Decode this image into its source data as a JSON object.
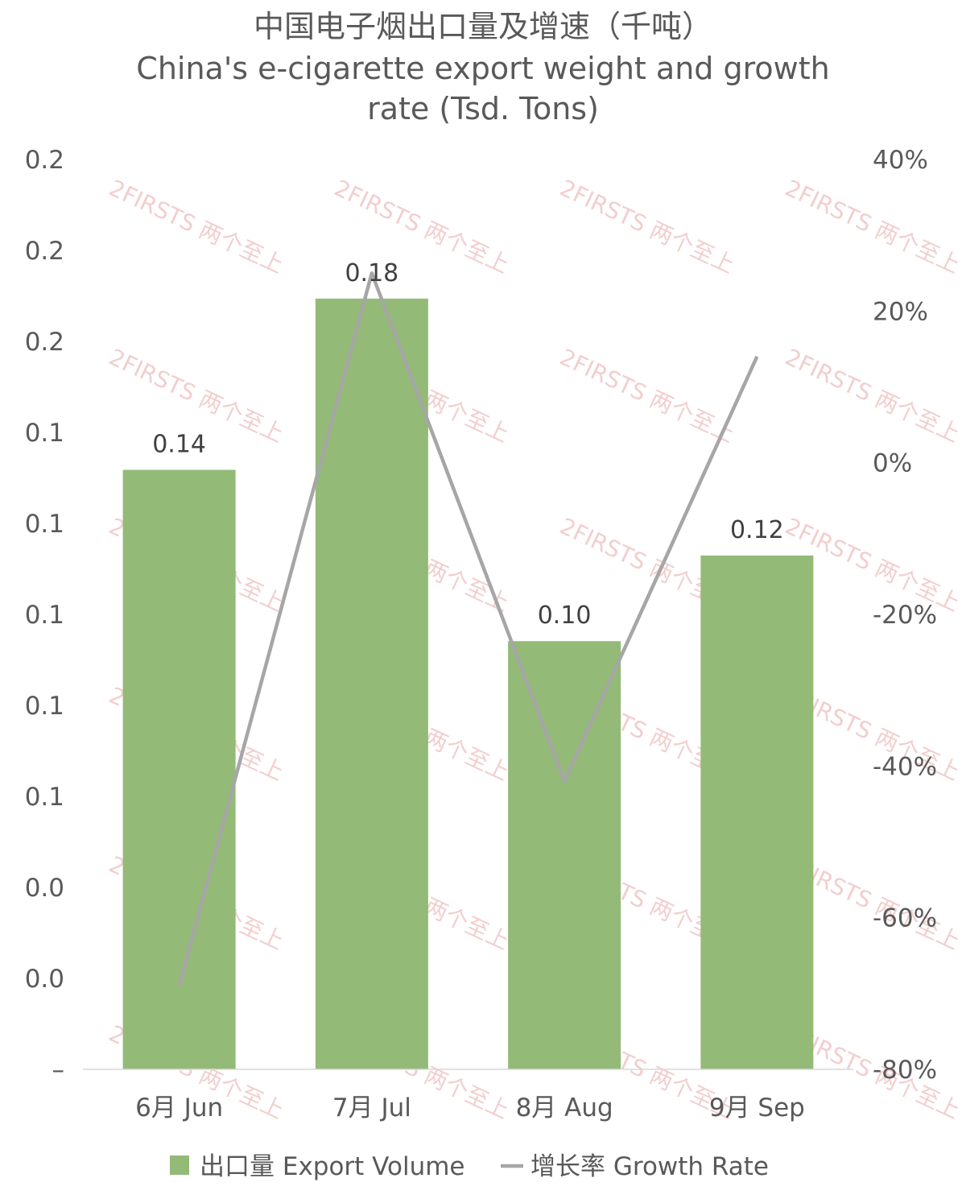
{
  "title": {
    "zh": "中国电子烟出口量及增速（千吨）",
    "en_line1": "China's e-cigarette export weight and growth",
    "en_line2": "rate (Tsd. Tons)"
  },
  "watermark": "2FIRSTS 两个至上",
  "colors": {
    "bar": "#93ba77",
    "line": "#a6a6a6",
    "text": "#595959",
    "watermark": "#e8a6a6"
  },
  "chart_data": {
    "type": "bar",
    "categories": [
      "6月 Jun",
      "7月 Jul",
      "8月 Aug",
      "9月 Sep"
    ],
    "series": [
      {
        "name": "出口量 Export Volume",
        "type": "bar",
        "axis": "left",
        "values": [
          0.14,
          0.18,
          0.1,
          0.12
        ],
        "labels": [
          "0.14",
          "0.18",
          "0.10",
          "0.12"
        ]
      },
      {
        "name": "增长率 Growth Rate",
        "type": "line",
        "axis": "right",
        "values": [
          -69,
          25,
          -42,
          14
        ]
      }
    ],
    "left_axis": {
      "ticks": [
        "–",
        "0.0",
        "0.0",
        "0.1",
        "0.1",
        "0.1",
        "0.1",
        "0.1",
        "0.2",
        "0.2",
        "0.2"
      ],
      "range": [
        0,
        0.2
      ]
    },
    "right_axis": {
      "ticks": [
        "-80%",
        "-60%",
        "-40%",
        "-20%",
        "0%",
        "20%",
        "40%"
      ],
      "range": [
        -80,
        40
      ]
    },
    "legend": {
      "position": "bottom",
      "bar_label": "出口量 Export Volume",
      "line_label": "增长率 Growth Rate"
    },
    "grid": false
  }
}
